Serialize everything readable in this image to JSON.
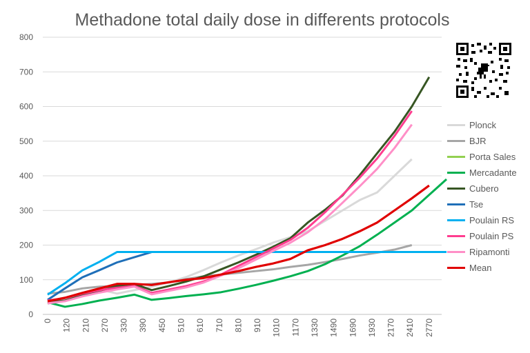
{
  "chart_data": {
    "type": "line",
    "title": "Methadone total daily dose in differents protocols",
    "xlabel": "",
    "ylabel": "",
    "ylim": [
      0,
      800
    ],
    "yticks": [
      0,
      100,
      200,
      300,
      400,
      500,
      600,
      700,
      800
    ],
    "x_tick_labels": [
      "0",
      "120",
      "210",
      "270",
      "330",
      "390",
      "450",
      "510",
      "610",
      "710",
      "810",
      "910",
      "1010",
      "1170",
      "1330",
      "1490",
      "1690",
      "1930",
      "2170",
      "2410",
      "2770"
    ],
    "grid": "horizontal",
    "legend_position": "right",
    "series": [
      {
        "name": "Plonck",
        "color": "#d9d9d9",
        "width": 3,
        "points": [
          [
            0,
            30
          ],
          [
            1,
            48
          ],
          [
            2,
            62
          ],
          [
            3,
            72
          ],
          [
            4,
            60
          ],
          [
            5,
            70
          ],
          [
            6,
            80
          ],
          [
            7,
            92
          ],
          [
            8,
            108
          ],
          [
            9,
            128
          ],
          [
            10,
            150
          ],
          [
            11,
            170
          ],
          [
            12,
            188
          ],
          [
            13,
            207
          ],
          [
            14,
            223
          ],
          [
            15,
            240
          ],
          [
            16,
            270
          ],
          [
            17,
            300
          ],
          [
            18,
            330
          ],
          [
            19,
            352
          ],
          [
            20,
            400
          ],
          [
            21,
            448
          ]
        ]
      },
      {
        "name": "BJR",
        "color": "#a6a6a6",
        "width": 3,
        "points": [
          [
            0,
            60
          ],
          [
            1,
            65
          ],
          [
            2,
            75
          ],
          [
            3,
            80
          ],
          [
            4,
            82
          ],
          [
            5,
            85
          ],
          [
            6,
            88
          ],
          [
            7,
            92
          ],
          [
            8,
            102
          ],
          [
            9,
            110
          ],
          [
            10,
            115
          ],
          [
            11,
            120
          ],
          [
            12,
            125
          ],
          [
            13,
            130
          ],
          [
            14,
            137
          ],
          [
            15,
            143
          ],
          [
            16,
            151
          ],
          [
            17,
            160
          ],
          [
            18,
            170
          ],
          [
            19,
            178
          ],
          [
            20,
            187
          ],
          [
            21,
            200
          ]
        ]
      },
      {
        "name": "Porta Sales",
        "color": "#92d050",
        "width": 3,
        "points": []
      },
      {
        "name": "Mercadante",
        "color": "#00b050",
        "width": 3,
        "points": [
          [
            0,
            35
          ],
          [
            1,
            22
          ],
          [
            2,
            30
          ],
          [
            3,
            40
          ],
          [
            4,
            48
          ],
          [
            5,
            57
          ],
          [
            6,
            42
          ],
          [
            7,
            47
          ],
          [
            8,
            53
          ],
          [
            9,
            58
          ],
          [
            10,
            64
          ],
          [
            11,
            74
          ],
          [
            12,
            85
          ],
          [
            13,
            97
          ],
          [
            14,
            110
          ],
          [
            15,
            125
          ],
          [
            16,
            145
          ],
          [
            17,
            170
          ],
          [
            18,
            197
          ],
          [
            19,
            230
          ],
          [
            20,
            265
          ],
          [
            21,
            300
          ],
          [
            22,
            345
          ],
          [
            23,
            390
          ]
        ]
      },
      {
        "name": "Cubero",
        "color": "#375623",
        "width": 3,
        "points": [
          [
            0,
            35
          ],
          [
            1,
            40
          ],
          [
            2,
            55
          ],
          [
            3,
            68
          ],
          [
            4,
            82
          ],
          [
            5,
            88
          ],
          [
            6,
            70
          ],
          [
            7,
            82
          ],
          [
            8,
            95
          ],
          [
            9,
            110
          ],
          [
            10,
            130
          ],
          [
            11,
            150
          ],
          [
            12,
            172
          ],
          [
            13,
            195
          ],
          [
            14,
            220
          ],
          [
            15,
            265
          ],
          [
            16,
            302
          ],
          [
            17,
            343
          ],
          [
            18,
            402
          ],
          [
            19,
            465
          ],
          [
            20,
            527
          ],
          [
            21,
            600
          ],
          [
            22,
            685
          ]
        ]
      },
      {
        "name": "Tse",
        "color": "#1f6fb8",
        "width": 3,
        "points": [
          [
            0,
            42
          ],
          [
            1,
            75
          ],
          [
            2,
            107
          ],
          [
            3,
            128
          ],
          [
            4,
            150
          ],
          [
            5,
            165
          ],
          [
            6,
            180
          ]
        ]
      },
      {
        "name": "Poulain RS",
        "color": "#00b0f0",
        "width": 3,
        "points": [
          [
            0,
            57
          ],
          [
            1,
            90
          ],
          [
            2,
            127
          ],
          [
            3,
            152
          ],
          [
            4,
            180
          ],
          [
            5,
            180
          ],
          [
            10,
            180
          ],
          [
            15,
            180
          ],
          [
            20,
            180
          ],
          [
            23,
            180
          ]
        ]
      },
      {
        "name": "Poulain PS",
        "color": "#ff3d8f",
        "width": 3,
        "points": [
          [
            0,
            40
          ],
          [
            1,
            47
          ],
          [
            2,
            60
          ],
          [
            3,
            70
          ],
          [
            4,
            77
          ],
          [
            5,
            82
          ],
          [
            6,
            62
          ],
          [
            7,
            72
          ],
          [
            8,
            82
          ],
          [
            9,
            95
          ],
          [
            10,
            115
          ],
          [
            11,
            140
          ],
          [
            12,
            165
          ],
          [
            13,
            190
          ],
          [
            14,
            215
          ],
          [
            15,
            250
          ],
          [
            16,
            295
          ],
          [
            17,
            345
          ],
          [
            18,
            395
          ],
          [
            19,
            450
          ],
          [
            20,
            515
          ],
          [
            21,
            587
          ]
        ]
      },
      {
        "name": "Ripamonti",
        "color": "#ff8fc7",
        "width": 3,
        "points": [
          [
            0,
            32
          ],
          [
            1,
            38
          ],
          [
            2,
            52
          ],
          [
            3,
            63
          ],
          [
            4,
            72
          ],
          [
            5,
            80
          ],
          [
            6,
            58
          ],
          [
            7,
            68
          ],
          [
            8,
            78
          ],
          [
            9,
            92
          ],
          [
            10,
            112
          ],
          [
            11,
            133
          ],
          [
            12,
            158
          ],
          [
            13,
            183
          ],
          [
            14,
            207
          ],
          [
            15,
            237
          ],
          [
            16,
            275
          ],
          [
            17,
            322
          ],
          [
            18,
            370
          ],
          [
            19,
            420
          ],
          [
            20,
            480
          ],
          [
            21,
            548
          ]
        ]
      },
      {
        "name": "Mean",
        "color": "#e00000",
        "width": 3.2,
        "points": [
          [
            0,
            38
          ],
          [
            1,
            48
          ],
          [
            2,
            62
          ],
          [
            3,
            75
          ],
          [
            4,
            88
          ],
          [
            5,
            88
          ],
          [
            6,
            85
          ],
          [
            7,
            93
          ],
          [
            8,
            100
          ],
          [
            9,
            105
          ],
          [
            10,
            115
          ],
          [
            11,
            125
          ],
          [
            12,
            137
          ],
          [
            13,
            147
          ],
          [
            14,
            160
          ],
          [
            15,
            185
          ],
          [
            16,
            200
          ],
          [
            17,
            218
          ],
          [
            18,
            240
          ],
          [
            19,
            265
          ],
          [
            20,
            300
          ],
          [
            21,
            335
          ],
          [
            22,
            372
          ]
        ]
      }
    ]
  },
  "qr_icon": "qr-code-icon"
}
